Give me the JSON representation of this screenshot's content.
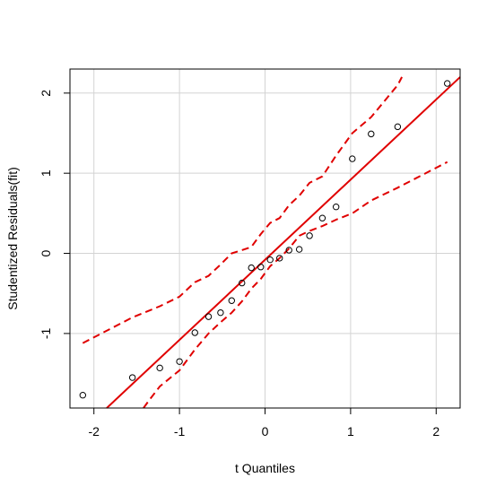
{
  "chart_data": {
    "type": "scatter",
    "title": "",
    "xlabel": "t Quantiles",
    "ylabel": "Studentized Residuals(fit)",
    "xlim": [
      -2.28,
      2.28
    ],
    "ylim": [
      -1.93,
      2.3
    ],
    "grid": true,
    "xticks": [
      -2,
      -1,
      0,
      1,
      2
    ],
    "xtick_labels": [
      "-2",
      "-1",
      "0",
      "1",
      "2"
    ],
    "yticks": [
      -1,
      0,
      1,
      2
    ],
    "ytick_labels": [
      "-1",
      "0",
      "1",
      "2"
    ],
    "points": [
      {
        "x": -2.13,
        "y": -1.77
      },
      {
        "x": -1.55,
        "y": -1.55
      },
      {
        "x": -1.23,
        "y": -1.43
      },
      {
        "x": -1.0,
        "y": -1.35
      },
      {
        "x": -0.82,
        "y": -0.99
      },
      {
        "x": -0.66,
        "y": -0.79
      },
      {
        "x": -0.52,
        "y": -0.74
      },
      {
        "x": -0.39,
        "y": -0.59
      },
      {
        "x": -0.27,
        "y": -0.37
      },
      {
        "x": -0.16,
        "y": -0.18
      },
      {
        "x": -0.05,
        "y": -0.17
      },
      {
        "x": 0.06,
        "y": -0.08
      },
      {
        "x": 0.17,
        "y": -0.06
      },
      {
        "x": 0.28,
        "y": 0.04
      },
      {
        "x": 0.4,
        "y": 0.05
      },
      {
        "x": 0.52,
        "y": 0.22
      },
      {
        "x": 0.67,
        "y": 0.44
      },
      {
        "x": 0.83,
        "y": 0.58
      },
      {
        "x": 1.02,
        "y": 1.18
      },
      {
        "x": 1.24,
        "y": 1.49
      },
      {
        "x": 1.55,
        "y": 1.58
      },
      {
        "x": 2.13,
        "y": 2.12
      }
    ],
    "fit_line": {
      "x": [
        -1.85,
        2.28
      ],
      "y": [
        -1.93,
        2.2
      ]
    },
    "upper_band": {
      "x": [
        -2.13,
        -1.55,
        -1.23,
        -1.0,
        -0.82,
        -0.66,
        -0.52,
        -0.39,
        -0.27,
        -0.16,
        -0.05,
        0.06,
        0.17,
        0.28,
        0.4,
        0.52,
        0.67,
        0.83,
        1.02,
        1.24,
        1.55,
        1.6
      ],
      "y": [
        -1.12,
        -0.8,
        -0.66,
        -0.54,
        -0.36,
        -0.28,
        -0.14,
        0.0,
        0.04,
        0.08,
        0.24,
        0.38,
        0.44,
        0.6,
        0.72,
        0.88,
        0.96,
        1.22,
        1.5,
        1.7,
        2.1,
        2.2
      ]
    },
    "lower_band": {
      "x": [
        -1.42,
        -1.36,
        -1.23,
        -1.0,
        -0.82,
        -0.66,
        -0.52,
        -0.39,
        -0.27,
        -0.16,
        -0.05,
        0.06,
        0.17,
        0.28,
        0.4,
        0.52,
        0.67,
        0.83,
        1.02,
        1.24,
        1.55,
        2.13
      ],
      "y": [
        -1.93,
        -1.84,
        -1.66,
        -1.46,
        -1.2,
        -1.0,
        -0.86,
        -0.74,
        -0.6,
        -0.44,
        -0.32,
        -0.16,
        -0.06,
        0.06,
        0.22,
        0.28,
        0.34,
        0.42,
        0.5,
        0.66,
        0.82,
        1.14
      ]
    },
    "colors": {
      "fit_line": "#e00000",
      "bands": "#e00000",
      "points": "#000000",
      "grid": "#d3d3d3",
      "axis": "#000000"
    }
  }
}
